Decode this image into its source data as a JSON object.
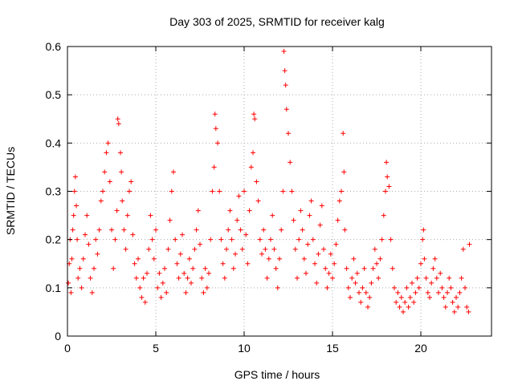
{
  "chart_data": {
    "type": "scatter",
    "title": "Day 303 of 2025, SRMTID for receiver kalg",
    "xlabel": "GPS time / hours",
    "ylabel": "SRMTID / TECUs",
    "xlim": [
      0,
      24
    ],
    "ylim": [
      0,
      0.6
    ],
    "xticks": [
      0,
      5,
      10,
      15,
      20
    ],
    "xtick_labels": [
      "0",
      "5",
      "10",
      "15",
      "20"
    ],
    "yticks": [
      0,
      0.1,
      0.2,
      0.3,
      0.4,
      0.5,
      0.6
    ],
    "ytick_labels": [
      "0",
      "0.1",
      "0.2",
      "0.3",
      "0.4",
      "0.5",
      "0.6"
    ],
    "grid": true,
    "marker": "+",
    "color": "#ff0000",
    "series": [
      {
        "name": "SRMTID",
        "points": [
          [
            0.05,
            0.11
          ],
          [
            0.1,
            0.15
          ],
          [
            0.15,
            0.2
          ],
          [
            0.2,
            0.09
          ],
          [
            0.25,
            0.16
          ],
          [
            0.3,
            0.22
          ],
          [
            0.35,
            0.25
          ],
          [
            0.4,
            0.3
          ],
          [
            0.45,
            0.33
          ],
          [
            0.5,
            0.27
          ],
          [
            0.55,
            0.2
          ],
          [
            0.6,
            0.12
          ],
          [
            0.7,
            0.14
          ],
          [
            0.8,
            0.1
          ],
          [
            0.9,
            0.16
          ],
          [
            1.0,
            0.21
          ],
          [
            1.1,
            0.25
          ],
          [
            1.2,
            0.19
          ],
          [
            1.3,
            0.12
          ],
          [
            1.4,
            0.09
          ],
          [
            1.5,
            0.14
          ],
          [
            1.6,
            0.2
          ],
          [
            1.7,
            0.17
          ],
          [
            1.8,
            0.22
          ],
          [
            1.9,
            0.28
          ],
          [
            2.0,
            0.3
          ],
          [
            2.1,
            0.34
          ],
          [
            2.2,
            0.38
          ],
          [
            2.3,
            0.4
          ],
          [
            2.4,
            0.32
          ],
          [
            2.5,
            0.22
          ],
          [
            2.6,
            0.14
          ],
          [
            2.7,
            0.2
          ],
          [
            2.8,
            0.26
          ],
          [
            2.85,
            0.45
          ],
          [
            2.9,
            0.44
          ],
          [
            3.0,
            0.38
          ],
          [
            3.05,
            0.34
          ],
          [
            3.1,
            0.28
          ],
          [
            3.2,
            0.22
          ],
          [
            3.3,
            0.18
          ],
          [
            3.4,
            0.25
          ],
          [
            3.5,
            0.3
          ],
          [
            3.6,
            0.32
          ],
          [
            3.7,
            0.21
          ],
          [
            3.8,
            0.15
          ],
          [
            3.9,
            0.12
          ],
          [
            4.0,
            0.16
          ],
          [
            4.1,
            0.1
          ],
          [
            4.2,
            0.08
          ],
          [
            4.3,
            0.12
          ],
          [
            4.4,
            0.07
          ],
          [
            4.5,
            0.13
          ],
          [
            4.6,
            0.18
          ],
          [
            4.7,
            0.25
          ],
          [
            4.8,
            0.2
          ],
          [
            4.9,
            0.16
          ],
          [
            5.0,
            0.22
          ],
          [
            5.1,
            0.1
          ],
          [
            5.2,
            0.13
          ],
          [
            5.3,
            0.08
          ],
          [
            5.4,
            0.11
          ],
          [
            5.5,
            0.14
          ],
          [
            5.6,
            0.09
          ],
          [
            5.7,
            0.18
          ],
          [
            5.8,
            0.24
          ],
          [
            5.9,
            0.3
          ],
          [
            6.0,
            0.34
          ],
          [
            6.1,
            0.2
          ],
          [
            6.2,
            0.15
          ],
          [
            6.3,
            0.12
          ],
          [
            6.4,
            0.17
          ],
          [
            6.5,
            0.21
          ],
          [
            6.6,
            0.13
          ],
          [
            6.7,
            0.09
          ],
          [
            6.8,
            0.12
          ],
          [
            6.9,
            0.16
          ],
          [
            7.0,
            0.11
          ],
          [
            7.1,
            0.14
          ],
          [
            7.2,
            0.18
          ],
          [
            7.3,
            0.22
          ],
          [
            7.4,
            0.26
          ],
          [
            7.5,
            0.19
          ],
          [
            7.6,
            0.12
          ],
          [
            7.7,
            0.09
          ],
          [
            7.8,
            0.14
          ],
          [
            7.9,
            0.1
          ],
          [
            8.0,
            0.13
          ],
          [
            8.1,
            0.2
          ],
          [
            8.2,
            0.3
          ],
          [
            8.3,
            0.35
          ],
          [
            8.35,
            0.46
          ],
          [
            8.4,
            0.43
          ],
          [
            8.5,
            0.4
          ],
          [
            8.6,
            0.3
          ],
          [
            8.7,
            0.2
          ],
          [
            8.8,
            0.15
          ],
          [
            8.9,
            0.12
          ],
          [
            9.0,
            0.18
          ],
          [
            9.1,
            0.22
          ],
          [
            9.2,
            0.26
          ],
          [
            9.3,
            0.2
          ],
          [
            9.4,
            0.14
          ],
          [
            9.5,
            0.17
          ],
          [
            9.6,
            0.24
          ],
          [
            9.7,
            0.29
          ],
          [
            9.8,
            0.22
          ],
          [
            9.9,
            0.18
          ],
          [
            10.0,
            0.3
          ],
          [
            10.1,
            0.21
          ],
          [
            10.2,
            0.15
          ],
          [
            10.3,
            0.26
          ],
          [
            10.4,
            0.35
          ],
          [
            10.5,
            0.38
          ],
          [
            10.55,
            0.46
          ],
          [
            10.6,
            0.45
          ],
          [
            10.7,
            0.32
          ],
          [
            10.8,
            0.28
          ],
          [
            10.9,
            0.2
          ],
          [
            11.0,
            0.17
          ],
          [
            11.1,
            0.22
          ],
          [
            11.2,
            0.18
          ],
          [
            11.3,
            0.12
          ],
          [
            11.4,
            0.16
          ],
          [
            11.5,
            0.2
          ],
          [
            11.6,
            0.25
          ],
          [
            11.7,
            0.18
          ],
          [
            11.8,
            0.14
          ],
          [
            11.9,
            0.1
          ],
          [
            12.0,
            0.16
          ],
          [
            12.1,
            0.22
          ],
          [
            12.2,
            0.3
          ],
          [
            12.25,
            0.59
          ],
          [
            12.3,
            0.55
          ],
          [
            12.35,
            0.52
          ],
          [
            12.4,
            0.47
          ],
          [
            12.5,
            0.42
          ],
          [
            12.6,
            0.36
          ],
          [
            12.7,
            0.3
          ],
          [
            12.8,
            0.24
          ],
          [
            12.9,
            0.18
          ],
          [
            13.0,
            0.12
          ],
          [
            13.1,
            0.2
          ],
          [
            13.2,
            0.26
          ],
          [
            13.3,
            0.22
          ],
          [
            13.4,
            0.16
          ],
          [
            13.5,
            0.13
          ],
          [
            13.6,
            0.19
          ],
          [
            13.7,
            0.25
          ],
          [
            13.8,
            0.28
          ],
          [
            13.9,
            0.2
          ],
          [
            14.0,
            0.15
          ],
          [
            14.1,
            0.11
          ],
          [
            14.2,
            0.17
          ],
          [
            14.3,
            0.23
          ],
          [
            14.4,
            0.27
          ],
          [
            14.5,
            0.18
          ],
          [
            14.6,
            0.14
          ],
          [
            14.7,
            0.1
          ],
          [
            14.8,
            0.13
          ],
          [
            14.9,
            0.17
          ],
          [
            15.0,
            0.12
          ],
          [
            15.1,
            0.15
          ],
          [
            15.2,
            0.19
          ],
          [
            15.3,
            0.24
          ],
          [
            15.4,
            0.28
          ],
          [
            15.5,
            0.3
          ],
          [
            15.6,
            0.42
          ],
          [
            15.65,
            0.34
          ],
          [
            15.7,
            0.22
          ],
          [
            15.8,
            0.14
          ],
          [
            15.9,
            0.1
          ],
          [
            16.0,
            0.08
          ],
          [
            16.1,
            0.12
          ],
          [
            16.2,
            0.16
          ],
          [
            16.3,
            0.11
          ],
          [
            16.4,
            0.13
          ],
          [
            16.5,
            0.09
          ],
          [
            16.6,
            0.07
          ],
          [
            16.7,
            0.1
          ],
          [
            16.8,
            0.14
          ],
          [
            16.9,
            0.09
          ],
          [
            17.0,
            0.06
          ],
          [
            17.1,
            0.08
          ],
          [
            17.2,
            0.11
          ],
          [
            17.3,
            0.14
          ],
          [
            17.4,
            0.18
          ],
          [
            17.5,
            0.15
          ],
          [
            17.6,
            0.12
          ],
          [
            17.7,
            0.16
          ],
          [
            17.8,
            0.2
          ],
          [
            17.9,
            0.25
          ],
          [
            18.0,
            0.3
          ],
          [
            18.05,
            0.36
          ],
          [
            18.1,
            0.33
          ],
          [
            18.2,
            0.31
          ],
          [
            18.3,
            0.2
          ],
          [
            18.4,
            0.14
          ],
          [
            18.5,
            0.1
          ],
          [
            18.6,
            0.07
          ],
          [
            18.7,
            0.09
          ],
          [
            18.8,
            0.06
          ],
          [
            18.9,
            0.08
          ],
          [
            19.0,
            0.05
          ],
          [
            19.1,
            0.07
          ],
          [
            19.2,
            0.1
          ],
          [
            19.3,
            0.06
          ],
          [
            19.4,
            0.08
          ],
          [
            19.5,
            0.11
          ],
          [
            19.6,
            0.07
          ],
          [
            19.7,
            0.09
          ],
          [
            19.8,
            0.12
          ],
          [
            19.9,
            0.1
          ],
          [
            20.0,
            0.15
          ],
          [
            20.1,
            0.2
          ],
          [
            20.15,
            0.22
          ],
          [
            20.2,
            0.16
          ],
          [
            20.3,
            0.12
          ],
          [
            20.4,
            0.09
          ],
          [
            20.5,
            0.08
          ],
          [
            20.6,
            0.11
          ],
          [
            20.7,
            0.14
          ],
          [
            20.8,
            0.16
          ],
          [
            20.9,
            0.12
          ],
          [
            21.0,
            0.09
          ],
          [
            21.1,
            0.13
          ],
          [
            21.2,
            0.1
          ],
          [
            21.3,
            0.08
          ],
          [
            21.4,
            0.06
          ],
          [
            21.5,
            0.09
          ],
          [
            21.6,
            0.12
          ],
          [
            21.7,
            0.1
          ],
          [
            21.8,
            0.07
          ],
          [
            21.9,
            0.05
          ],
          [
            22.0,
            0.08
          ],
          [
            22.1,
            0.06
          ],
          [
            22.2,
            0.09
          ],
          [
            22.3,
            0.12
          ],
          [
            22.4,
            0.18
          ],
          [
            22.5,
            0.1
          ],
          [
            22.6,
            0.06
          ],
          [
            22.7,
            0.05
          ],
          [
            22.75,
            0.19
          ]
        ]
      }
    ]
  }
}
